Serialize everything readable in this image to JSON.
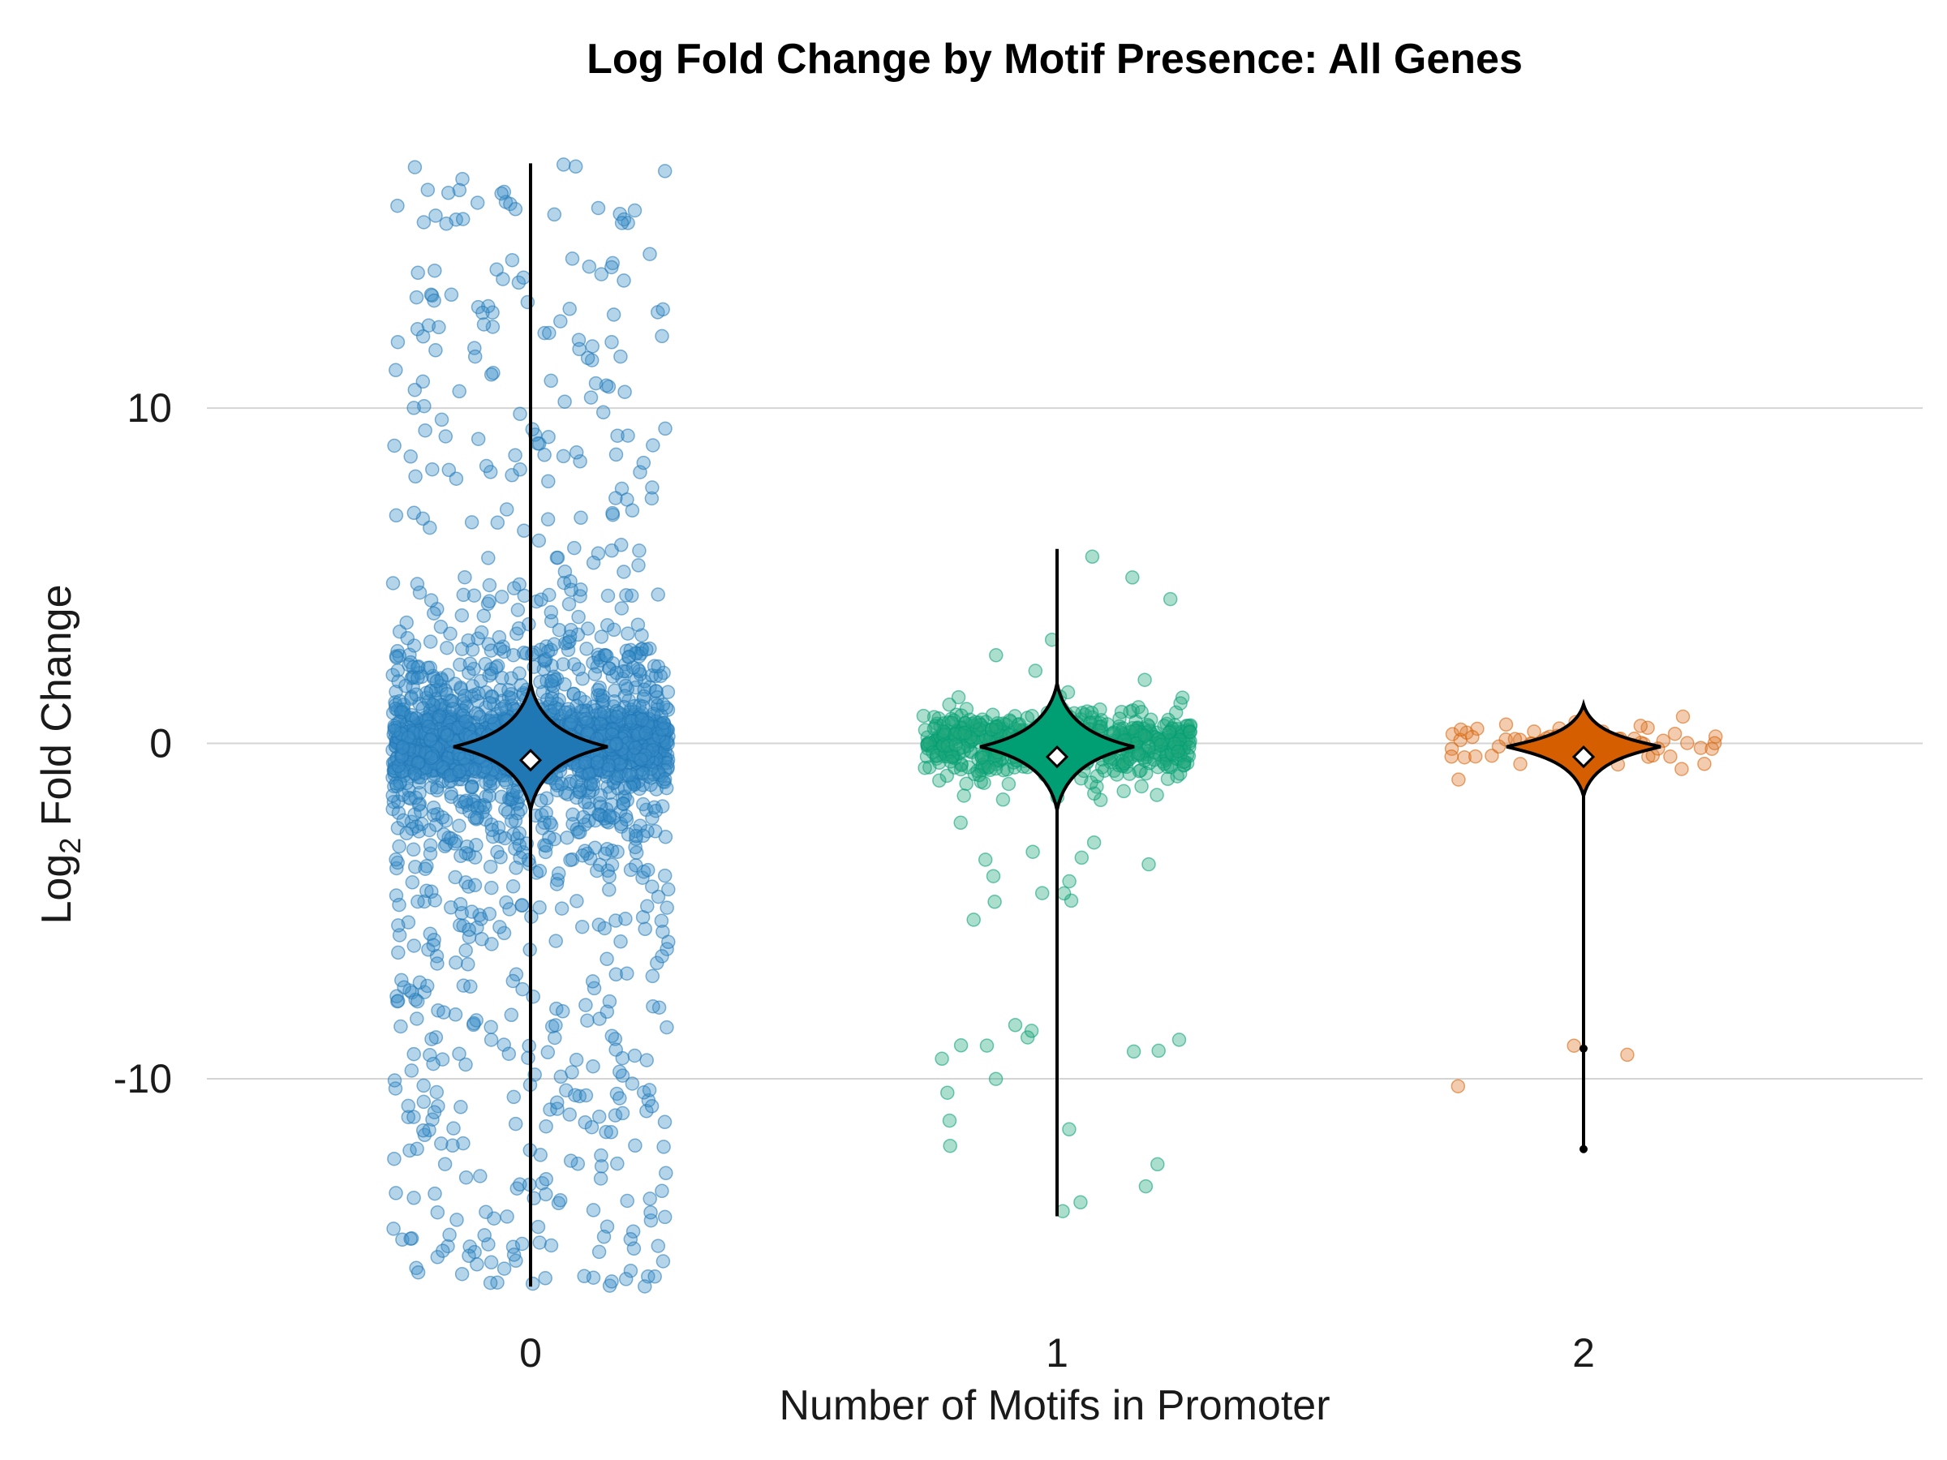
{
  "chart_data": {
    "type": "violin-jitter",
    "title": "Log Fold Change by Motif Presence: All Genes",
    "xlabel": "Number of Motifs in Promoter",
    "ylabel": {
      "prefix": "Log",
      "subscript": "2",
      "suffix": " Fold Change"
    },
    "categories": [
      "0",
      "1",
      "2"
    ],
    "ylim": [
      -17.5,
      18.3
    ],
    "yticks": [
      {
        "value": 10,
        "label": "10"
      },
      {
        "value": 0,
        "label": "0"
      },
      {
        "value": -10,
        "label": "-10"
      }
    ],
    "grid": "horizontal",
    "series": [
      {
        "category": "0",
        "color": "#1f77b4",
        "point_color": "#3a8fc8",
        "n_points": 2600,
        "min": -16.2,
        "max": 17.3,
        "mean": -0.5,
        "median": -0.1
      },
      {
        "category": "1",
        "color": "#009e73",
        "point_color": "#22a87c",
        "n_points": 700,
        "min": -14.1,
        "max": 5.8,
        "mean": -0.4,
        "median": -0.1
      },
      {
        "category": "2",
        "color": "#d55e00",
        "point_color": "#e07a2c",
        "n_points": 65,
        "min": -12.1,
        "max": 0.8,
        "mean": -0.4,
        "median": -0.1
      }
    ]
  }
}
